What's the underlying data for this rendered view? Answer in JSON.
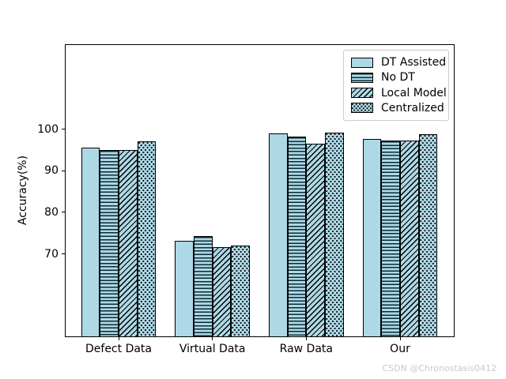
{
  "watermark": "CSDN @Chronostasis0412",
  "chart_data": {
    "type": "bar",
    "title": "",
    "xlabel": "",
    "ylabel": "Accuracy(%)",
    "categories": [
      "Defect Data",
      "Virtual Data",
      "Raw Data",
      "Our"
    ],
    "series": [
      {
        "name": "DT Assisted",
        "pattern": "solid",
        "values": [
          95.5,
          73.2,
          99.0,
          97.7
        ]
      },
      {
        "name": "No DT",
        "pattern": "hlines",
        "values": [
          95.0,
          74.3,
          98.2,
          97.2
        ]
      },
      {
        "name": "Local Model",
        "pattern": "diag",
        "values": [
          95.0,
          71.6,
          96.5,
          97.2
        ]
      },
      {
        "name": "Centralized",
        "pattern": "dots",
        "values": [
          97.0,
          72.0,
          99.2,
          98.8
        ]
      }
    ],
    "ylim": [
      50,
      120.4
    ],
    "yticks": [
      70,
      80,
      90,
      100
    ],
    "bar_fill": "#ADD8E6",
    "bar_edge": "#000000",
    "legend_position": "upper right",
    "grid": false
  }
}
